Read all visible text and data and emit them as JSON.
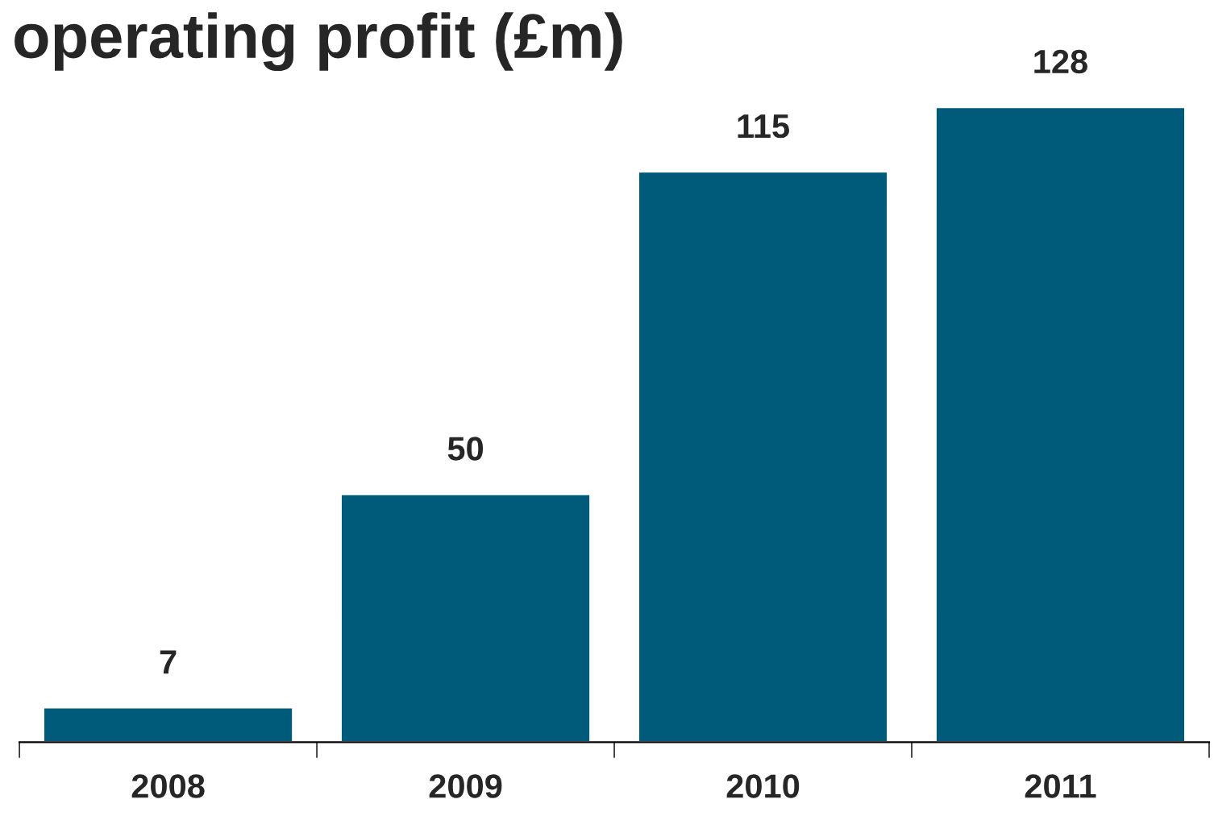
{
  "chart_data": {
    "type": "bar",
    "title": "operating profit (£m)",
    "categories": [
      "2008",
      "2009",
      "2010",
      "2011"
    ],
    "values": [
      7,
      50,
      115,
      128
    ],
    "color": "#005b7b",
    "data_labels": true,
    "grid": false,
    "legend": false
  }
}
